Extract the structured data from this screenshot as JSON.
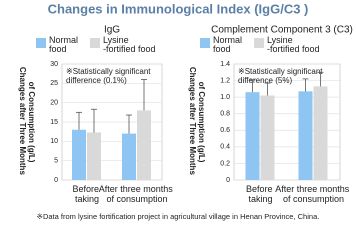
{
  "title": "Changes in Immunological Index (IgG/C3 )",
  "footnote": "※Data from lysine fortification project in agricultural village in Henan Province, China.",
  "chart_data": [
    {
      "type": "bar",
      "title": "IgG",
      "ylabel": "Changes after Three Months of Consumption (g/L)",
      "annotation": "※Statistically significant difference (0.1%)",
      "categories": [
        "Before taking",
        "After three months of consumption"
      ],
      "series": [
        {
          "name": "Normal food",
          "color": "#8ec5f2",
          "values": [
            13,
            12
          ],
          "errors": [
            4.5,
            4.8
          ]
        },
        {
          "name": "Lysine -fortified food",
          "color": "#d9d9d9",
          "values": [
            12.3,
            18
          ],
          "errors": [
            6,
            8
          ]
        }
      ],
      "ylim": [
        0,
        30
      ],
      "yticks": [
        0,
        5,
        10,
        15,
        20,
        25,
        30
      ],
      "grid": true
    },
    {
      "type": "bar",
      "title": "Complement Component 3 (C3)",
      "ylabel": "Changes after Three Months of Consumption (g/L)",
      "annotation": "※Statistically significant difference (5%)",
      "categories": [
        "Before taking",
        "After three months of consumption"
      ],
      "series": [
        {
          "name": "Normal food",
          "color": "#8ec5f2",
          "values": [
            1.06,
            1.07
          ],
          "errors": [
            0.15,
            0.15
          ]
        },
        {
          "name": "Lysine -fortified food",
          "color": "#d9d9d9",
          "values": [
            1.02,
            1.13
          ],
          "errors": [
            0.15,
            0.17
          ]
        }
      ],
      "ylim": [
        0,
        1.4
      ],
      "yticks": [
        0,
        0.2,
        0.4,
        0.6,
        0.8,
        {
          "value": 1,
          "label": "1.0"
        },
        1.2,
        1.4
      ],
      "grid": true
    }
  ]
}
